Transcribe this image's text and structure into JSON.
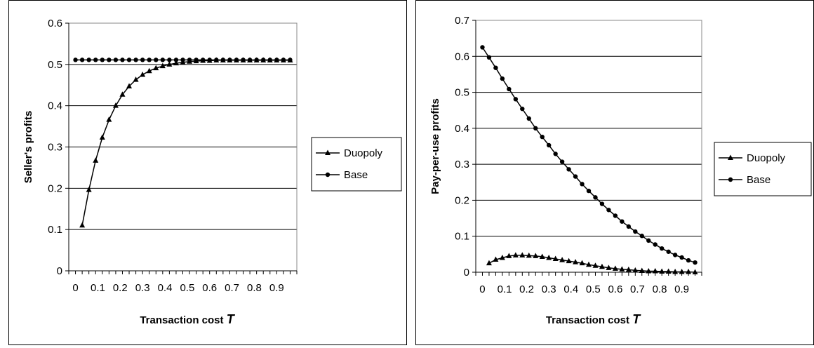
{
  "chart_data": [
    {
      "type": "line",
      "xlabel": "Transaction cost",
      "xlabel_var": "T",
      "ylabel": "Seller's profits",
      "ylim": [
        0,
        0.6
      ],
      "yticks": [
        "0",
        "0.1",
        "0.2",
        "0.3",
        "0.4",
        "0.5",
        "0.6"
      ],
      "xticks": [
        "0",
        "0.1",
        "0.2",
        "0.3",
        "0.4",
        "0.5",
        "0.6",
        "0.7",
        "0.8",
        "0.9"
      ],
      "grid": true,
      "legend_position": "right",
      "series": [
        {
          "name": "Duopoly",
          "marker": "triangle",
          "x": [
            0.03,
            0.06,
            0.09,
            0.12,
            0.15,
            0.18,
            0.21,
            0.24,
            0.27,
            0.3,
            0.33,
            0.36,
            0.39,
            0.42,
            0.45,
            0.48,
            0.51,
            0.54,
            0.57,
            0.6,
            0.63,
            0.66,
            0.69,
            0.72,
            0.75,
            0.78,
            0.81,
            0.84,
            0.87,
            0.9,
            0.93,
            0.96
          ],
          "values": [
            0.11,
            0.196,
            0.267,
            0.323,
            0.366,
            0.4,
            0.427,
            0.447,
            0.463,
            0.475,
            0.484,
            0.491,
            0.496,
            0.5,
            0.503,
            0.505,
            0.507,
            0.508,
            0.509,
            0.509,
            0.51,
            0.51,
            0.51,
            0.51,
            0.51,
            0.51,
            0.51,
            0.51,
            0.51,
            0.51,
            0.51,
            0.51
          ]
        },
        {
          "name": "Base",
          "marker": "circle",
          "x": [
            0.0,
            0.03,
            0.06,
            0.09,
            0.12,
            0.15,
            0.18,
            0.21,
            0.24,
            0.27,
            0.3,
            0.33,
            0.36,
            0.39,
            0.42,
            0.45,
            0.48,
            0.51,
            0.54,
            0.57,
            0.6,
            0.63,
            0.66,
            0.69,
            0.72,
            0.75,
            0.78,
            0.81,
            0.84,
            0.87,
            0.9,
            0.93,
            0.96
          ],
          "values": [
            0.511,
            0.511,
            0.511,
            0.511,
            0.511,
            0.511,
            0.511,
            0.511,
            0.511,
            0.511,
            0.511,
            0.511,
            0.511,
            0.511,
            0.511,
            0.511,
            0.511,
            0.511,
            0.511,
            0.511,
            0.511,
            0.511,
            0.511,
            0.511,
            0.511,
            0.511,
            0.511,
            0.511,
            0.511,
            0.511,
            0.511,
            0.511,
            0.511
          ]
        }
      ]
    },
    {
      "type": "line",
      "xlabel": "Transaction cost",
      "xlabel_var": "T",
      "ylabel": "Pay-per-use profits",
      "ylim": [
        0,
        0.7
      ],
      "yticks": [
        "0",
        "0.1",
        "0.2",
        "0.3",
        "0.4",
        "0.5",
        "0.6",
        "0.7"
      ],
      "xticks": [
        "0",
        "0.1",
        "0.2",
        "0.3",
        "0.4",
        "0.5",
        "0.6",
        "0.7",
        "0.8",
        "0.9"
      ],
      "grid": true,
      "legend_position": "right",
      "series": [
        {
          "name": "Duopoly",
          "marker": "triangle",
          "x": [
            0.03,
            0.06,
            0.09,
            0.12,
            0.15,
            0.18,
            0.21,
            0.24,
            0.27,
            0.3,
            0.33,
            0.36,
            0.39,
            0.42,
            0.45,
            0.48,
            0.51,
            0.54,
            0.57,
            0.6,
            0.63,
            0.66,
            0.69,
            0.72,
            0.75,
            0.78,
            0.81,
            0.84,
            0.87,
            0.9,
            0.93,
            0.96
          ],
          "values": [
            0.025,
            0.035,
            0.04,
            0.045,
            0.047,
            0.047,
            0.046,
            0.045,
            0.043,
            0.04,
            0.037,
            0.034,
            0.031,
            0.028,
            0.025,
            0.021,
            0.018,
            0.015,
            0.012,
            0.01,
            0.008,
            0.007,
            0.005,
            0.004,
            0.003,
            0.003,
            0.002,
            0.002,
            0.001,
            0.001,
            0.001,
            0.0
          ]
        },
        {
          "name": "Base",
          "marker": "circle",
          "x": [
            0.0,
            0.03,
            0.06,
            0.09,
            0.12,
            0.15,
            0.18,
            0.21,
            0.24,
            0.27,
            0.3,
            0.33,
            0.36,
            0.39,
            0.42,
            0.45,
            0.48,
            0.51,
            0.54,
            0.57,
            0.6,
            0.63,
            0.66,
            0.69,
            0.72,
            0.75,
            0.78,
            0.81,
            0.84,
            0.87,
            0.9,
            0.93,
            0.96
          ],
          "values": [
            0.625,
            0.597,
            0.568,
            0.538,
            0.509,
            0.481,
            0.454,
            0.427,
            0.4,
            0.376,
            0.353,
            0.329,
            0.307,
            0.286,
            0.266,
            0.245,
            0.226,
            0.208,
            0.19,
            0.173,
            0.157,
            0.141,
            0.127,
            0.113,
            0.101,
            0.088,
            0.077,
            0.066,
            0.057,
            0.048,
            0.041,
            0.033,
            0.027
          ]
        }
      ]
    }
  ]
}
